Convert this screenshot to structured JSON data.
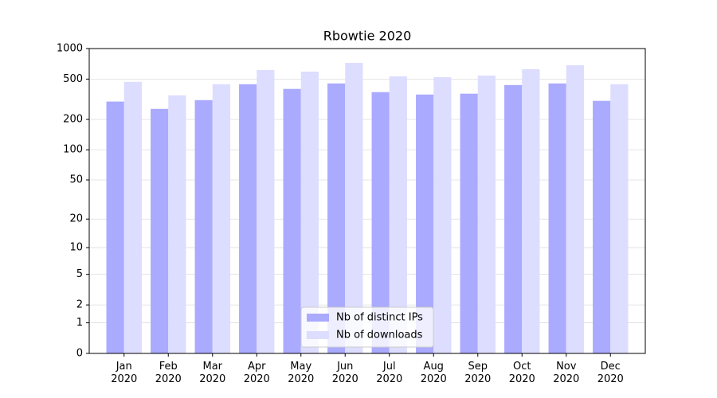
{
  "chart_data": {
    "type": "bar",
    "title": "Rbowtie 2020",
    "scale": "log1p",
    "categories": [
      "Jan\n2020",
      "Feb\n2020",
      "Mar\n2020",
      "Apr\n2020",
      "May\n2020",
      "Jun\n2020",
      "Jul\n2020",
      "Aug\n2020",
      "Sep\n2020",
      "Oct\n2020",
      "Nov\n2020",
      "Dec\n2020"
    ],
    "series": [
      {
        "name": "Nb of distinct IPs",
        "color": "#aaaaff",
        "values": [
          300,
          254,
          310,
          445,
          400,
          453,
          372,
          352,
          359,
          437,
          453,
          305
        ]
      },
      {
        "name": "Nb of downloads",
        "color": "#ddddff",
        "values": [
          470,
          346,
          445,
          615,
          593,
          723,
          533,
          523,
          542,
          626,
          685,
          445
        ]
      }
    ],
    "ylim": [
      0,
      1000
    ],
    "yticks": [
      0,
      1,
      2,
      5,
      10,
      20,
      50,
      100,
      200,
      500,
      1000
    ],
    "grid": true,
    "legend": "lower center"
  }
}
